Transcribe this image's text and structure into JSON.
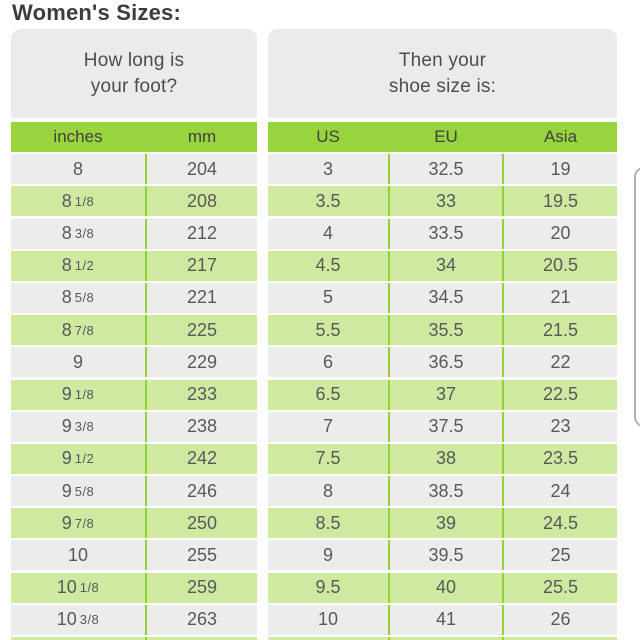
{
  "page_title": "Women's Sizes:",
  "colors": {
    "header_green": "#99d43e",
    "divider_green": "#94d039",
    "row_light_green": "#cfe9a1",
    "row_gray": "#ececec",
    "card_gray": "#ebebeb",
    "title_text": "#3b3c3e",
    "cell_text": "#58595b"
  },
  "foot_table": {
    "header_line1": "How long is",
    "header_line2": "your foot?",
    "columns": [
      "inches",
      "mm"
    ],
    "rows": [
      [
        "8",
        "204"
      ],
      [
        "8 1/8",
        "208"
      ],
      [
        "8 3/8",
        "212"
      ],
      [
        "8 1/2",
        "217"
      ],
      [
        "8 5/8",
        "221"
      ],
      [
        "8 7/8",
        "225"
      ],
      [
        "9",
        "229"
      ],
      [
        "9 1/8",
        "233"
      ],
      [
        "9 3/8",
        "238"
      ],
      [
        "9 1/2",
        "242"
      ],
      [
        "9 5/8",
        "246"
      ],
      [
        "9 7/8",
        "250"
      ],
      [
        "10",
        "255"
      ],
      [
        "10 1/8",
        "259"
      ],
      [
        "10 3/8",
        "263"
      ]
    ]
  },
  "shoe_table": {
    "header_line1": "Then your",
    "header_line2": "shoe size is:",
    "columns": [
      "US",
      "EU",
      "Asia"
    ],
    "rows": [
      [
        "3",
        "32.5",
        "19"
      ],
      [
        "3.5",
        "33",
        "19.5"
      ],
      [
        "4",
        "33.5",
        "20"
      ],
      [
        "4.5",
        "34",
        "20.5"
      ],
      [
        "5",
        "34.5",
        "21"
      ],
      [
        "5.5",
        "35.5",
        "21.5"
      ],
      [
        "6",
        "36.5",
        "22"
      ],
      [
        "6.5",
        "37",
        "22.5"
      ],
      [
        "7",
        "37.5",
        "23"
      ],
      [
        "7.5",
        "38",
        "23.5"
      ],
      [
        "8",
        "38.5",
        "24"
      ],
      [
        "8.5",
        "39",
        "24.5"
      ],
      [
        "9",
        "39.5",
        "25"
      ],
      [
        "9.5",
        "40",
        "25.5"
      ],
      [
        "10",
        "41",
        "26"
      ]
    ]
  },
  "scrollbar": {
    "visible": true
  }
}
